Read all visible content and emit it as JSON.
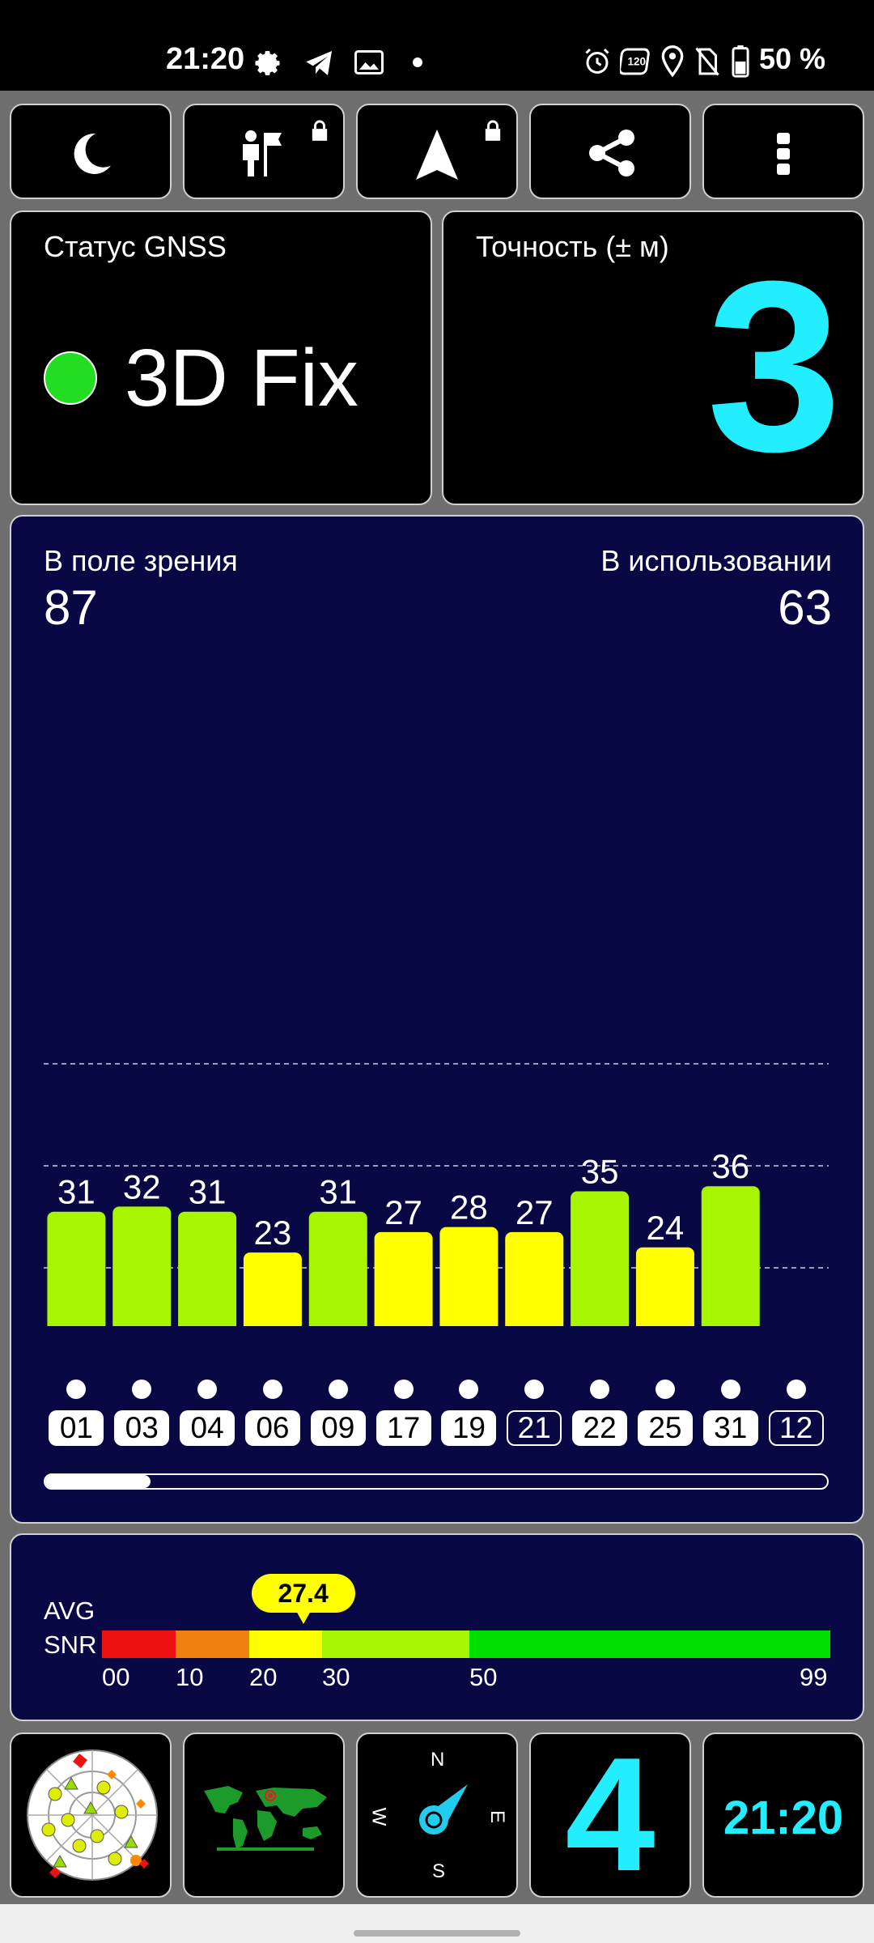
{
  "status_bar": {
    "time": "21:20",
    "battery": "50 %",
    "icons": [
      "gear-icon",
      "telegram-icon",
      "gallery-icon",
      "dot-icon",
      "alarm-icon",
      "refresh-120hz-icon",
      "location-pin-icon",
      "no-sim-icon",
      "battery-icon"
    ]
  },
  "toolbar": {
    "buttons": [
      "night-mode-moon-icon",
      "mission-flag-icon",
      "navigation-arrow-icon",
      "share-icon",
      "more-vert-icon"
    ]
  },
  "gnss_status": {
    "label": "Статус GNSS",
    "value": "3D Fix",
    "indicator_color": "#22dd22"
  },
  "accuracy": {
    "label": "Точность (± м)",
    "value": "3"
  },
  "satellites": {
    "in_view_label": "В поле зрения",
    "in_view": "87",
    "in_use_label": "В использовании",
    "in_use": "63"
  },
  "chart_data": {
    "type": "bar",
    "categories": [
      "01",
      "03",
      "04",
      "06",
      "09",
      "17",
      "19",
      "21",
      "22",
      "25",
      "31",
      "12"
    ],
    "values": [
      31,
      32,
      31,
      23,
      31,
      27,
      28,
      27,
      35,
      24,
      36,
      0
    ],
    "value_labels": [
      "31",
      "32",
      "31",
      "23",
      "31",
      "27",
      "28",
      "27",
      "35",
      "24",
      "36",
      ""
    ],
    "colors": [
      "#a8f500",
      "#a8f500",
      "#a8f500",
      "#ffff00",
      "#a8f500",
      "#ffff00",
      "#ffff00",
      "#ffff00",
      "#a8f500",
      "#ffff00",
      "#a8f500",
      "#e01010"
    ],
    "outlined": [
      false,
      false,
      false,
      false,
      false,
      false,
      false,
      true,
      false,
      false,
      false,
      true
    ],
    "ylim": [
      0,
      60
    ],
    "grid": "dashed"
  },
  "snr": {
    "label_line1": "AVG",
    "label_line2": "SNR",
    "avg": "27.4",
    "avg_value": 27.4,
    "scale_labels": [
      "00",
      "10",
      "20",
      "30",
      "50",
      "99"
    ],
    "segment_colors": [
      "#ee1111",
      "#f08010",
      "#ffff00",
      "#a8f500",
      "#00e000"
    ]
  },
  "bottom_widgets": {
    "sats_used": "4",
    "clock": "21:20",
    "compass": {
      "n": "N",
      "s": "S",
      "w": "W",
      "e": "E"
    }
  },
  "colors": {
    "accent_cyan": "#22eeff",
    "navy": "#080845"
  }
}
